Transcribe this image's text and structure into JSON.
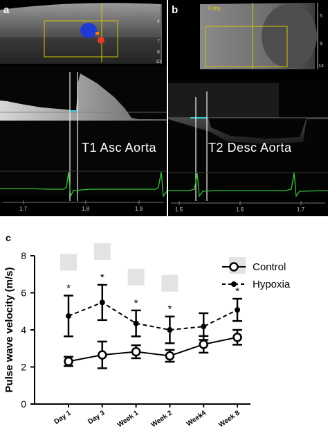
{
  "panel_a": {
    "label": "a",
    "annotation": "T1  Asc Aorta",
    "x_ticks": [
      "1.7",
      "1.8",
      "1.9"
    ],
    "side_numbers": [
      "4",
      "7",
      "8",
      "10"
    ]
  },
  "panel_b": {
    "label": "b",
    "annotation": "T2  Desc Aorta",
    "angle_text": "0 deg",
    "x_ticks": [
      "1.5",
      "1.6",
      "1.7"
    ],
    "side_numbers": [
      "5",
      "9",
      "13"
    ]
  },
  "panel_c": {
    "label": "c"
  },
  "colors": {
    "echo_bg": "#000000",
    "ecg_green": "#36c236",
    "doppler_cyan": "#31c7d6",
    "marker_gray": "#e3e3e3"
  },
  "chart_data": {
    "type": "line",
    "categories": [
      "Day 1",
      "Day 3",
      "Week 1",
      "Week 2",
      "Week4",
      "Week 8"
    ],
    "ylabel": "Pulse wave velocity (m/s)",
    "xlabel": "",
    "ylim": [
      0,
      8
    ],
    "yticks": [
      "0",
      "2",
      "4",
      "6",
      "8"
    ],
    "legend_position": "top-right",
    "series": [
      {
        "name": "Control",
        "marker": "open-circle",
        "line": "solid",
        "values": [
          2.3,
          2.65,
          2.82,
          2.6,
          3.22,
          3.6
        ],
        "errors": [
          0.25,
          0.72,
          0.35,
          0.32,
          0.45,
          0.4
        ]
      },
      {
        "name": "Hypoxia",
        "marker": "filled-circle",
        "line": "dashed",
        "values": [
          4.75,
          5.48,
          4.35,
          4.0,
          4.18,
          5.08
        ],
        "errors": [
          1.1,
          0.95,
          0.7,
          0.72,
          0.72,
          0.6
        ]
      }
    ],
    "significance": [
      "*",
      "*",
      "*",
      "*",
      "",
      "*"
    ]
  }
}
